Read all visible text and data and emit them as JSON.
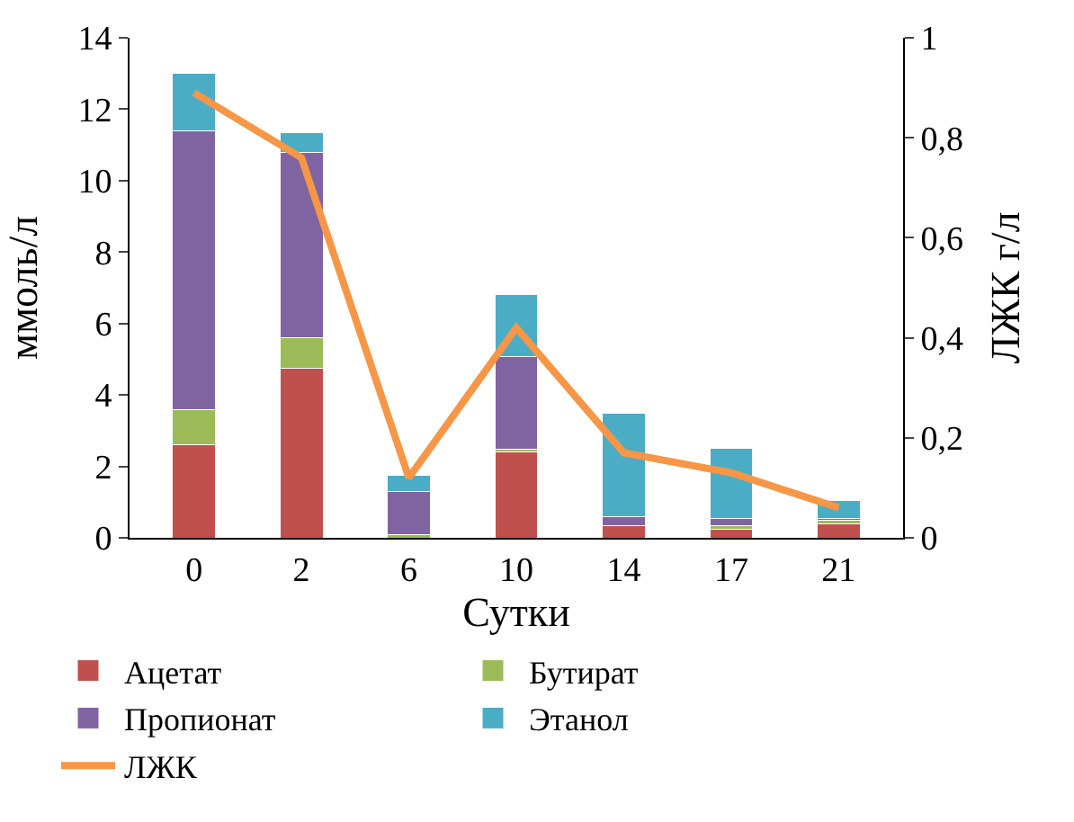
{
  "chart_data": {
    "type": "bar",
    "stacked": true,
    "categories": [
      "0",
      "2",
      "6",
      "10",
      "14",
      "17",
      "21"
    ],
    "xlabel": "Сутки",
    "ylabel": "ммоль/л",
    "y2label": "ЛЖК г/л",
    "ylim": [
      0,
      14
    ],
    "yticks": [
      0,
      2,
      4,
      6,
      8,
      10,
      12,
      14
    ],
    "y2lim": [
      0,
      1
    ],
    "y2ticks": [
      {
        "value": 0,
        "label": "0"
      },
      {
        "value": 0.2,
        "label": "0,2"
      },
      {
        "value": 0.4,
        "label": "0,4"
      },
      {
        "value": 0.6,
        "label": "0,6"
      },
      {
        "value": 0.8,
        "label": "0,8"
      },
      {
        "value": 1,
        "label": "1"
      }
    ],
    "legend": "bottom",
    "series": [
      {
        "name": "Ацетат",
        "color": "#c0504d",
        "values": [
          2.6,
          4.75,
          0,
          2.4,
          0.35,
          0.25,
          0.4
        ]
      },
      {
        "name": "Бутират",
        "color": "#9bbb59",
        "values": [
          1.0,
          0.85,
          0.1,
          0.07,
          0,
          0.1,
          0.1
        ]
      },
      {
        "name": "Пропионат",
        "color": "#8064a2",
        "values": [
          7.8,
          5.2,
          1.2,
          2.6,
          0.25,
          0.2,
          0.05
        ]
      },
      {
        "name": "Этанол",
        "color": "#4bacc6",
        "values": [
          1.6,
          0.55,
          0.45,
          1.75,
          2.9,
          1.95,
          0.5
        ]
      },
      {
        "name": "ЛЖК",
        "color": "#f79646",
        "type": "line",
        "axis": "y2",
        "line_style": "solid",
        "marker": "none",
        "values": [
          0.89,
          0.76,
          0.12,
          0.42,
          0.17,
          0.13,
          0.06
        ]
      }
    ]
  }
}
